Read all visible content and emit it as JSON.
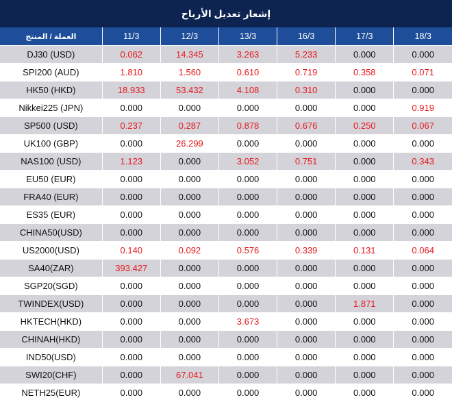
{
  "title": "إشعار تعديل الأرباح",
  "header": {
    "product_label": "العملة / المنتج",
    "dates": [
      "11/3",
      "12/3",
      "13/3",
      "16/3",
      "17/3",
      "18/3"
    ]
  },
  "colors": {
    "title_bg": "#0d2350",
    "header_bg": "#1e4e9a",
    "row_alt_bg": "#d3d3d9",
    "positive_value": "#e8181c",
    "zero_value": "#111111"
  },
  "rows": [
    {
      "product": "DJ30 (USD)",
      "values": [
        "0.062",
        "14.345",
        "3.263",
        "5.233",
        "0.000",
        "0.000"
      ]
    },
    {
      "product": "SPI200 (AUD)",
      "values": [
        "1.810",
        "1.560",
        "0.610",
        "0.719",
        "0.358",
        "0.071"
      ]
    },
    {
      "product": "HK50 (HKD)",
      "values": [
        "18.933",
        "53.432",
        "4.108",
        "0.310",
        "0.000",
        "0.000"
      ]
    },
    {
      "product": "Nikkei225 (JPN)",
      "values": [
        "0.000",
        "0.000",
        "0.000",
        "0.000",
        "0.000",
        "0.919"
      ]
    },
    {
      "product": "SP500 (USD)",
      "values": [
        "0.237",
        "0.287",
        "0.878",
        "0.676",
        "0.250",
        "0.067"
      ]
    },
    {
      "product": "UK100 (GBP)",
      "values": [
        "0.000",
        "26.299",
        "0.000",
        "0.000",
        "0.000",
        "0.000"
      ]
    },
    {
      "product": "NAS100 (USD)",
      "values": [
        "1.123",
        "0.000",
        "3.052",
        "0.751",
        "0.000",
        "0.343"
      ]
    },
    {
      "product": "EU50 (EUR)",
      "values": [
        "0.000",
        "0.000",
        "0.000",
        "0.000",
        "0.000",
        "0.000"
      ]
    },
    {
      "product": "FRA40 (EUR)",
      "values": [
        "0.000",
        "0.000",
        "0.000",
        "0.000",
        "0.000",
        "0.000"
      ]
    },
    {
      "product": "ES35 (EUR)",
      "values": [
        "0.000",
        "0.000",
        "0.000",
        "0.000",
        "0.000",
        "0.000"
      ]
    },
    {
      "product": "CHINA50(USD)",
      "values": [
        "0.000",
        "0.000",
        "0.000",
        "0.000",
        "0.000",
        "0.000"
      ]
    },
    {
      "product": "US2000(USD)",
      "values": [
        "0.140",
        "0.092",
        "0.576",
        "0.339",
        "0.131",
        "0.064"
      ]
    },
    {
      "product": "SA40(ZAR)",
      "values": [
        "393.427",
        "0.000",
        "0.000",
        "0.000",
        "0.000",
        "0.000"
      ]
    },
    {
      "product": "SGP20(SGD)",
      "values": [
        "0.000",
        "0.000",
        "0.000",
        "0.000",
        "0.000",
        "0.000"
      ]
    },
    {
      "product": "TWINDEX(USD)",
      "values": [
        "0.000",
        "0.000",
        "0.000",
        "0.000",
        "1.871",
        "0.000"
      ]
    },
    {
      "product": "HKTECH(HKD)",
      "values": [
        "0.000",
        "0.000",
        "3.673",
        "0.000",
        "0.000",
        "0.000"
      ]
    },
    {
      "product": "CHINAH(HKD)",
      "values": [
        "0.000",
        "0.000",
        "0.000",
        "0.000",
        "0.000",
        "0.000"
      ]
    },
    {
      "product": "IND50(USD)",
      "values": [
        "0.000",
        "0.000",
        "0.000",
        "0.000",
        "0.000",
        "0.000"
      ]
    },
    {
      "product": "SWI20(CHF)",
      "values": [
        "0.000",
        "67.041",
        "0.000",
        "0.000",
        "0.000",
        "0.000"
      ]
    },
    {
      "product": "NETH25(EUR)",
      "values": [
        "0.000",
        "0.000",
        "0.000",
        "0.000",
        "0.000",
        "0.000"
      ]
    }
  ]
}
